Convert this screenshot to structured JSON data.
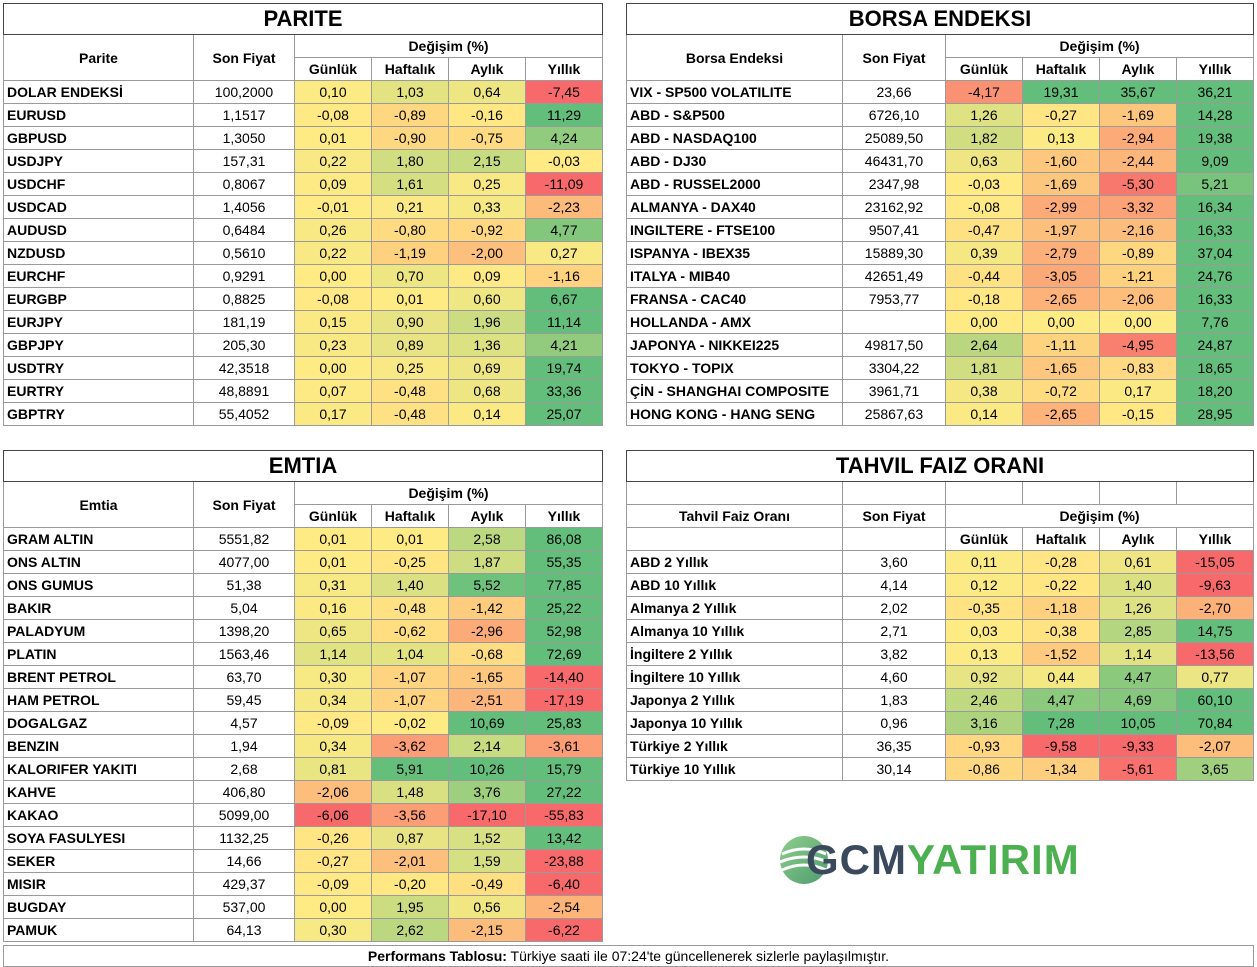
{
  "headers": {
    "price": "Son Fiyat",
    "change": "Değişim (%)",
    "daily": "Günlük",
    "weekly": "Haftalık",
    "monthly": "Aylık",
    "yearly": "Yıllık"
  },
  "parite": {
    "title": "PARITE",
    "label": "Parite",
    "rows": [
      {
        "name": "DOLAR ENDEKSİ",
        "price": "100,2000",
        "d": "0,10",
        "w": "1,03",
        "m": "0,64",
        "y": "-7,45"
      },
      {
        "name": "EURUSD",
        "price": "1,1517",
        "d": "-0,08",
        "w": "-0,89",
        "m": "-0,16",
        "y": "11,29"
      },
      {
        "name": "GBPUSD",
        "price": "1,3050",
        "d": "0,01",
        "w": "-0,90",
        "m": "-0,75",
        "y": "4,24"
      },
      {
        "name": "USDJPY",
        "price": "157,31",
        "d": "0,22",
        "w": "1,80",
        "m": "2,15",
        "y": "-0,03"
      },
      {
        "name": "USDCHF",
        "price": "0,8067",
        "d": "0,09",
        "w": "1,61",
        "m": "0,25",
        "y": "-11,09"
      },
      {
        "name": "USDCAD",
        "price": "1,4056",
        "d": "-0,01",
        "w": "0,21",
        "m": "0,33",
        "y": "-2,23"
      },
      {
        "name": "AUDUSD",
        "price": "0,6484",
        "d": "0,26",
        "w": "-0,80",
        "m": "-0,92",
        "y": "4,77"
      },
      {
        "name": "NZDUSD",
        "price": "0,5610",
        "d": "0,22",
        "w": "-1,19",
        "m": "-2,00",
        "y": "0,27"
      },
      {
        "name": "EURCHF",
        "price": "0,9291",
        "d": "0,00",
        "w": "0,70",
        "m": "0,09",
        "y": "-1,16"
      },
      {
        "name": "EURGBP",
        "price": "0,8825",
        "d": "-0,08",
        "w": "0,01",
        "m": "0,60",
        "y": "6,67"
      },
      {
        "name": "EURJPY",
        "price": "181,19",
        "d": "0,15",
        "w": "0,90",
        "m": "1,96",
        "y": "11,14"
      },
      {
        "name": "GBPJPY",
        "price": "205,30",
        "d": "0,23",
        "w": "0,89",
        "m": "1,36",
        "y": "4,21"
      },
      {
        "name": "USDTRY",
        "price": "42,3518",
        "d": "0,00",
        "w": "0,25",
        "m": "0,69",
        "y": "19,74"
      },
      {
        "name": "EURTRY",
        "price": "48,8891",
        "d": "0,07",
        "w": "-0,48",
        "m": "0,68",
        "y": "33,36"
      },
      {
        "name": "GBPTRY",
        "price": "55,4052",
        "d": "0,17",
        "w": "-0,48",
        "m": "0,14",
        "y": "25,07"
      }
    ]
  },
  "borsa": {
    "title": "BORSA ENDEKSI",
    "label": "Borsa Endeksi",
    "rows": [
      {
        "name": "VIX  - SP500 VOLATILITE",
        "price": "23,66",
        "d": "-4,17",
        "w": "19,31",
        "m": "35,67",
        "y": "36,21"
      },
      {
        "name": "ABD - S&P500",
        "price": "6726,10",
        "d": "1,26",
        "w": "-0,27",
        "m": "-1,69",
        "y": "14,28"
      },
      {
        "name": "ABD - NASDAQ100",
        "price": "25089,50",
        "d": "1,82",
        "w": "0,13",
        "m": "-2,94",
        "y": "19,38"
      },
      {
        "name": "ABD - DJ30",
        "price": "46431,70",
        "d": "0,63",
        "w": "-1,60",
        "m": "-2,44",
        "y": "9,09"
      },
      {
        "name": "ABD - RUSSEL2000",
        "price": "2347,98",
        "d": "-0,03",
        "w": "-1,69",
        "m": "-5,30",
        "y": "5,21"
      },
      {
        "name": "ALMANYA - DAX40",
        "price": "23162,92",
        "d": "-0,08",
        "w": "-2,99",
        "m": "-3,32",
        "y": "16,34"
      },
      {
        "name": "INGILTERE - FTSE100",
        "price": "9507,41",
        "d": "-0,47",
        "w": "-1,97",
        "m": "-2,16",
        "y": "16,33"
      },
      {
        "name": "ISPANYA - IBEX35",
        "price": "15889,30",
        "d": "0,39",
        "w": "-2,79",
        "m": "-0,89",
        "y": "37,04"
      },
      {
        "name": "ITALYA - MIB40",
        "price": "42651,49",
        "d": "-0,44",
        "w": "-3,05",
        "m": "-1,21",
        "y": "24,76"
      },
      {
        "name": "FRANSA - CAC40",
        "price": "7953,77",
        "d": "-0,18",
        "w": "-2,65",
        "m": "-2,06",
        "y": "16,33"
      },
      {
        "name": "HOLLANDA - AMX",
        "price": "",
        "d": "0,00",
        "w": "0,00",
        "m": "0,00",
        "y": "7,76"
      },
      {
        "name": "JAPONYA - NIKKEI225",
        "price": "49817,50",
        "d": "2,64",
        "w": "-1,11",
        "m": "-4,95",
        "y": "24,87"
      },
      {
        "name": "TOKYO - TOPIX",
        "price": "3304,22",
        "d": "1,81",
        "w": "-1,65",
        "m": "-0,83",
        "y": "18,65"
      },
      {
        "name": "ÇİN - SHANGHAI COMPOSITE",
        "price": "3961,71",
        "d": "0,38",
        "w": "-0,72",
        "m": "0,17",
        "y": "18,20"
      },
      {
        "name": "HONG KONG - HANG SENG",
        "price": "25867,63",
        "d": "0,14",
        "w": "-2,65",
        "m": "-0,15",
        "y": "28,95"
      }
    ]
  },
  "emtia": {
    "title": "EMTIA",
    "label": "Emtia",
    "rows": [
      {
        "name": "GRAM ALTIN",
        "price": "5551,82",
        "d": "0,01",
        "w": "0,01",
        "m": "2,58",
        "y": "86,08"
      },
      {
        "name": "ONS ALTIN",
        "price": "4077,00",
        "d": "0,01",
        "w": "-0,25",
        "m": "1,87",
        "y": "55,35"
      },
      {
        "name": "ONS GUMUS",
        "price": "51,38",
        "d": "0,31",
        "w": "1,40",
        "m": "5,52",
        "y": "77,85"
      },
      {
        "name": "BAKIR",
        "price": "5,04",
        "d": "0,16",
        "w": "-0,48",
        "m": "-1,42",
        "y": "25,22"
      },
      {
        "name": "PALADYUM",
        "price": "1398,20",
        "d": "0,65",
        "w": "-0,62",
        "m": "-2,96",
        "y": "52,98"
      },
      {
        "name": "PLATIN",
        "price": "1563,46",
        "d": "1,14",
        "w": "1,04",
        "m": "-0,68",
        "y": "72,69"
      },
      {
        "name": "BRENT PETROL",
        "price": "63,70",
        "d": "0,30",
        "w": "-1,07",
        "m": "-1,65",
        "y": "-14,40"
      },
      {
        "name": "HAM PETROL",
        "price": "59,45",
        "d": "0,34",
        "w": "-1,07",
        "m": "-2,51",
        "y": "-17,19"
      },
      {
        "name": "DOGALGAZ",
        "price": "4,57",
        "d": "-0,09",
        "w": "-0,02",
        "m": "10,69",
        "y": "25,83"
      },
      {
        "name": "BENZIN",
        "price": "1,94",
        "d": "0,34",
        "w": "-3,62",
        "m": "2,14",
        "y": "-3,61"
      },
      {
        "name": "KALORIFER YAKITI",
        "price": "2,68",
        "d": "0,81",
        "w": "5,91",
        "m": "10,26",
        "y": "15,79"
      },
      {
        "name": "KAHVE",
        "price": "406,80",
        "d": "-2,06",
        "w": "1,48",
        "m": "3,76",
        "y": "27,22"
      },
      {
        "name": "KAKAO",
        "price": "5099,00",
        "d": "-6,06",
        "w": "-3,56",
        "m": "-17,10",
        "y": "-55,83"
      },
      {
        "name": "SOYA FASULYESI",
        "price": "1132,25",
        "d": "-0,26",
        "w": "0,87",
        "m": "1,52",
        "y": "13,42"
      },
      {
        "name": "SEKER",
        "price": "14,66",
        "d": "-0,27",
        "w": "-2,01",
        "m": "1,59",
        "y": "-23,88"
      },
      {
        "name": "MISIR",
        "price": "429,37",
        "d": "-0,09",
        "w": "-0,20",
        "m": "-0,49",
        "y": "-6,40"
      },
      {
        "name": "BUGDAY",
        "price": "537,00",
        "d": "0,00",
        "w": "1,95",
        "m": "0,56",
        "y": "-2,54"
      },
      {
        "name": "PAMUK",
        "price": "64,13",
        "d": "0,30",
        "w": "2,62",
        "m": "-2,15",
        "y": "-6,22"
      }
    ]
  },
  "tahvil": {
    "title": "TAHVIL FAIZ ORANI",
    "label": "Tahvil Faiz Oranı",
    "rows": [
      {
        "name": "ABD 2 Yıllık",
        "price": "3,60",
        "d": "0,11",
        "w": "-0,28",
        "m": "0,61",
        "y": "-15,05"
      },
      {
        "name": "ABD 10 Yıllık",
        "price": "4,14",
        "d": "0,12",
        "w": "-0,22",
        "m": "1,40",
        "y": "-9,63"
      },
      {
        "name": "Almanya 2 Yıllık",
        "price": "2,02",
        "d": "-0,35",
        "w": "-1,18",
        "m": "1,26",
        "y": "-2,70"
      },
      {
        "name": "Almanya 10 Yıllık",
        "price": "2,71",
        "d": "0,03",
        "w": "-0,38",
        "m": "2,85",
        "y": "14,75"
      },
      {
        "name": "İngiltere 2 Yıllık",
        "price": "3,82",
        "d": "0,13",
        "w": "-1,52",
        "m": "1,14",
        "y": "-13,56"
      },
      {
        "name": "İngiltere 10 Yıllık",
        "price": "4,60",
        "d": "0,92",
        "w": "0,44",
        "m": "4,47",
        "y": "0,77"
      },
      {
        "name": "Japonya 2 Yıllık",
        "price": "1,83",
        "d": "2,46",
        "w": "4,47",
        "m": "4,69",
        "y": "60,10"
      },
      {
        "name": "Japonya 10 Yıllık",
        "price": "0,96",
        "d": "3,16",
        "w": "7,28",
        "m": "10,05",
        "y": "70,84"
      },
      {
        "name": "Türkiye 2 Yıllık",
        "price": "36,35",
        "d": "-0,93",
        "w": "-9,58",
        "m": "-9,33",
        "y": "-2,07"
      },
      {
        "name": "Türkiye 10 Yıllık",
        "price": "30,14",
        "d": "-0,86",
        "w": "-1,34",
        "m": "-5,61",
        "y": "3,65"
      }
    ]
  },
  "logo": {
    "part1": "GCM",
    "part2": "YATIRIM"
  },
  "footer": {
    "bold": "Performans Tablosu:",
    "text": " Türkiye saati ile 07:24'te güncellenerek sizlerle paylaşılmıştır."
  }
}
